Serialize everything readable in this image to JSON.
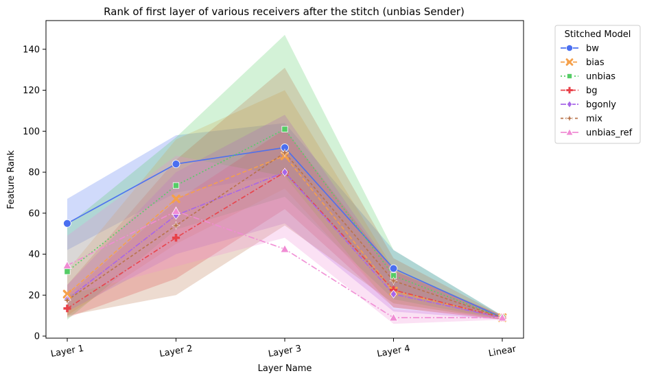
{
  "chart_data": {
    "type": "line",
    "title": "Rank of first layer of various receivers after the stitch (unbias Sender)",
    "xlabel": "Layer Name",
    "ylabel": "Feature Rank",
    "categories": [
      "Layer 1",
      "Layer 2",
      "Layer 3",
      "Layer 4",
      "Linear"
    ],
    "yticks": [
      0,
      20,
      40,
      60,
      80,
      100,
      120,
      140
    ],
    "ylim": [
      -1,
      154
    ],
    "grid": false,
    "legend": {
      "title": "Stitched Model",
      "placement": "outside-top-right"
    },
    "series": [
      {
        "name": "bw",
        "color": "#4a6ff0",
        "marker": "circle",
        "dash": "solid",
        "values": [
          55,
          84,
          92,
          33,
          9
        ],
        "lower": [
          42,
          70,
          79,
          22,
          8
        ],
        "upper": [
          67,
          98,
          104,
          42,
          10
        ]
      },
      {
        "name": "bias",
        "color": "#f5a04a",
        "marker": "x",
        "dash": "dashed",
        "values": [
          20.5,
          67,
          88,
          22,
          9
        ],
        "lower": [
          10,
          45,
          72,
          14,
          8
        ],
        "upper": [
          32,
          96,
          120,
          33,
          10
        ]
      },
      {
        "name": "unbias",
        "color": "#55cc66",
        "marker": "square",
        "dash": "dotted",
        "values": [
          31.5,
          73.5,
          101,
          29.5,
          9
        ],
        "lower": [
          8,
          52,
          68,
          18,
          8
        ],
        "upper": [
          54,
          97,
          147,
          42,
          10
        ]
      },
      {
        "name": "bg",
        "color": "#e8424a",
        "marker": "plus",
        "dash": "dashdot",
        "values": [
          13.5,
          48,
          80,
          22.5,
          9
        ],
        "lower": [
          9,
          28,
          62,
          14,
          8
        ],
        "upper": [
          20,
          66,
          101,
          32,
          10
        ]
      },
      {
        "name": "bgonly",
        "color": "#a765e8",
        "marker": "diamond",
        "dash": "dashdot2",
        "values": [
          18,
          59,
          80,
          20.5,
          9
        ],
        "lower": [
          12,
          40,
          55,
          12,
          8
        ],
        "upper": [
          25,
          80,
          108,
          32,
          10
        ]
      },
      {
        "name": "mix",
        "color": "#b8734a",
        "marker": "star",
        "dash": "dashed2",
        "values": [
          17.5,
          54,
          89.5,
          27,
          9
        ],
        "lower": [
          10,
          20,
          54,
          16,
          8
        ],
        "upper": [
          25,
          86,
          131,
          38,
          10
        ]
      },
      {
        "name": "unbias_ref",
        "color": "#f08cd4",
        "marker": "triangle",
        "dash": "dashdot3",
        "values": [
          34.5,
          61,
          42.5,
          9,
          9
        ],
        "lower": [
          20,
          34,
          48,
          6,
          8
        ],
        "upper": [
          49,
          88,
          78,
          13,
          10
        ]
      }
    ]
  }
}
